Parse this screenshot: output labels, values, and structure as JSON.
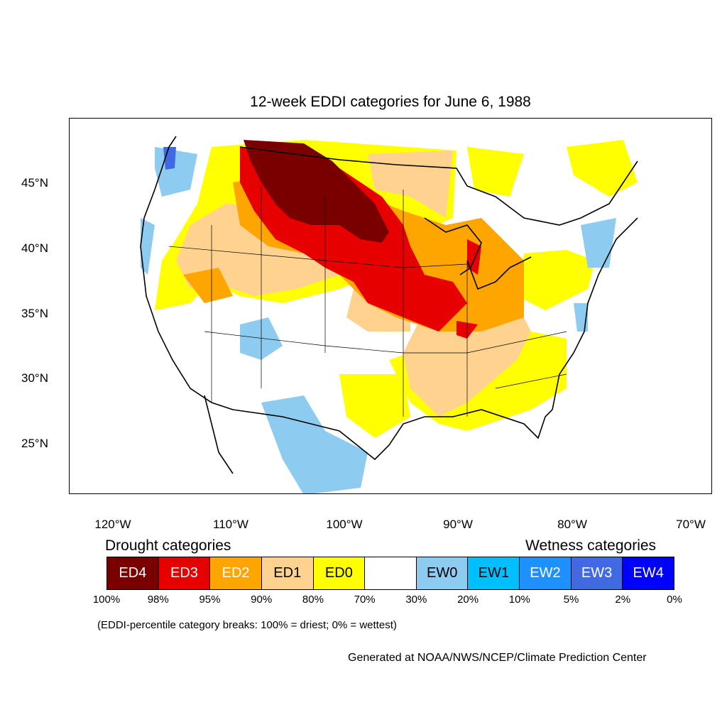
{
  "title": "12-week EDDI categories for June 6, 1988",
  "latitude_labels": [
    "45°N",
    "40°N",
    "35°N",
    "30°N",
    "25°N"
  ],
  "longitude_labels": [
    "120°W",
    "110°W",
    "100°W",
    "90°W",
    "80°W",
    "70°W"
  ],
  "legend": {
    "drought_heading": "Drought categories",
    "wetness_heading": "Wetness categories",
    "categories": [
      {
        "label": "ED4",
        "color": "#7a0000",
        "text_color": "#ffffff"
      },
      {
        "label": "ED3",
        "color": "#e60000",
        "text_color": "#ffffff"
      },
      {
        "label": "ED2",
        "color": "#ffa500",
        "text_color": "#ffffff"
      },
      {
        "label": "ED1",
        "color": "#ffd38f",
        "text_color": "#000000"
      },
      {
        "label": "ED0",
        "color": "#ffff00",
        "text_color": "#000000"
      },
      {
        "label": "",
        "color": "#ffffff",
        "text_color": "#000000"
      },
      {
        "label": "EW0",
        "color": "#8ecbf0",
        "text_color": "#000000"
      },
      {
        "label": "EW1",
        "color": "#00bfff",
        "text_color": "#000000"
      },
      {
        "label": "EW2",
        "color": "#1e90ff",
        "text_color": "#ffffff"
      },
      {
        "label": "EW3",
        "color": "#4169e1",
        "text_color": "#ffffff"
      },
      {
        "label": "EW4",
        "color": "#0000ff",
        "text_color": "#ffffff"
      }
    ],
    "breaks": [
      "100%",
      "98%",
      "95%",
      "90%",
      "80%",
      "70%",
      "30%",
      "20%",
      "10%",
      "5%",
      "2%",
      "0%"
    ]
  },
  "note": "(EDDI-percentile category breaks: 100% = driest; 0% = wettest)",
  "credit": "Generated at NOAA/NWS/NCEP/Climate Prediction Center"
}
